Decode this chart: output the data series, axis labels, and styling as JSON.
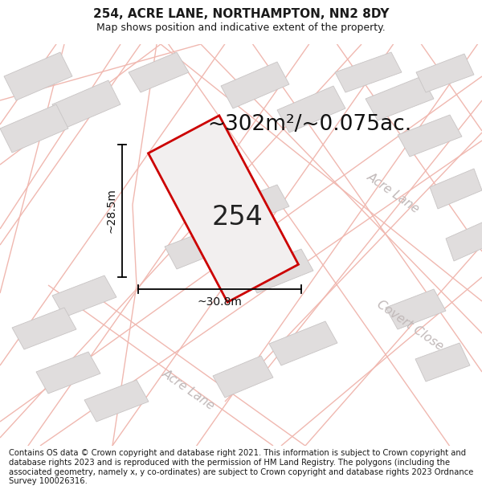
{
  "title": "254, ACRE LANE, NORTHAMPTON, NN2 8DY",
  "subtitle": "Map shows position and indicative extent of the property.",
  "footer": "Contains OS data © Crown copyright and database right 2021. This information is subject to Crown copyright and database rights 2023 and is reproduced with the permission of HM Land Registry. The polygons (including the associated geometry, namely x, y co-ordinates) are subject to Crown copyright and database rights 2023 Ordnance Survey 100026316.",
  "area_label": "~302m²/~0.075ac.",
  "dim_width": "~30.8m",
  "dim_height": "~28.5m",
  "plot_number": "254",
  "map_bg": "#f9f8f8",
  "road_color": "#f0b8b0",
  "road_lw": 1.0,
  "building_color": "#e0dddd",
  "building_edge": "#c8c4c4",
  "plot_fill": "#f2efef",
  "plot_edge": "#cc0000",
  "street_label_color": "#c0b8b8",
  "title_fontsize": 11,
  "subtitle_fontsize": 9,
  "footer_fontsize": 7.2,
  "area_fontsize": 19,
  "plot_num_fontsize": 24,
  "dim_fontsize": 10,
  "street_fontsize": 11
}
